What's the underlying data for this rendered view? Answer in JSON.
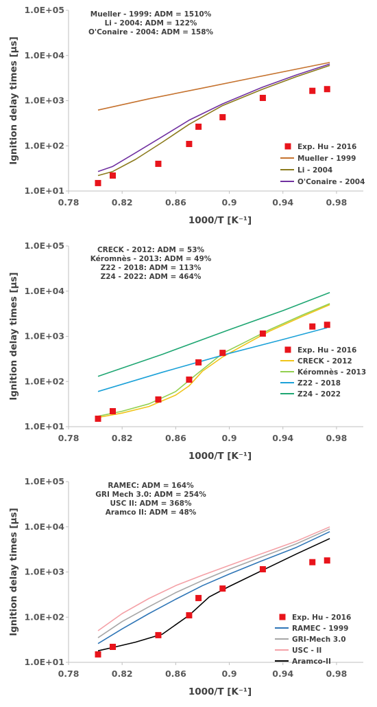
{
  "chart_data": [
    {
      "type": "scatter",
      "xlabel": "1000/T [K⁻¹]",
      "ylabel": "Ignition delay times [μs]",
      "x_ticks": [
        "0.78",
        "0.82",
        "0.86",
        "0.9",
        "0.94",
        "0.98"
      ],
      "y_ticks": [
        "1.0E+01",
        "1.0E+02",
        "1.0E+03",
        "1.0E+04",
        "1.0E+05"
      ],
      "xlim": [
        0.78,
        1.0
      ],
      "ylim": [
        10,
        100000
      ],
      "y_scale": "log",
      "grid": false,
      "legend_position": "bottom-right",
      "annotations": [
        "Mueller - 1999: ADM = 1510%",
        "Li - 2004: ADM = 122%",
        "O'Conaire - 2004: ADM = 158%"
      ],
      "experimental": {
        "name": "Exp. Hu - 2016",
        "color": "#e8141b",
        "x": [
          0.802,
          0.813,
          0.847,
          0.87,
          0.877,
          0.895,
          0.925,
          0.962,
          0.973
        ],
        "y": [
          15,
          22,
          40,
          110,
          265,
          430,
          1150,
          1650,
          1800
        ]
      },
      "series": [
        {
          "name": "Mueller - 1999",
          "color": "#c5722e",
          "x": [
            0.802,
            0.84,
            0.88,
            0.92,
            0.975
          ],
          "y": [
            620,
            1100,
            1900,
            3300,
            7000
          ]
        },
        {
          "name": "Li - 2004",
          "color": "#8b7a1c",
          "x": [
            0.802,
            0.813,
            0.83,
            0.85,
            0.87,
            0.895,
            0.925,
            0.95,
            0.975
          ],
          "y": [
            22,
            27,
            50,
            120,
            300,
            780,
            1800,
            3400,
            6000
          ]
        },
        {
          "name": "O'Conaire - 2004",
          "color": "#7030a0",
          "x": [
            0.802,
            0.813,
            0.83,
            0.85,
            0.87,
            0.895,
            0.925,
            0.95,
            0.975
          ],
          "y": [
            27,
            35,
            70,
            160,
            370,
            850,
            2000,
            3700,
            6500
          ]
        }
      ]
    },
    {
      "type": "scatter",
      "xlabel": "1000/T [K⁻¹]",
      "ylabel": "Ignition delay times [μs]",
      "x_ticks": [
        "0.78",
        "0.82",
        "0.86",
        "0.9",
        "0.94",
        "0.98"
      ],
      "y_ticks": [
        "1.0E+01",
        "1.0E+02",
        "1.0E+03",
        "1.0E+04",
        "1.0E+05"
      ],
      "xlim": [
        0.78,
        1.0
      ],
      "ylim": [
        10,
        100000
      ],
      "y_scale": "log",
      "grid": false,
      "legend_position": "bottom-right",
      "annotations": [
        "CRECK - 2012: ADM = 53%",
        "Kéromnès - 2013: ADM = 49%",
        "Z22 - 2018: ADM = 113%",
        "Z24 - 2022: ADM = 464%"
      ],
      "experimental": {
        "name": "Exp. Hu - 2016",
        "color": "#e8141b",
        "x": [
          0.802,
          0.813,
          0.847,
          0.87,
          0.877,
          0.895,
          0.925,
          0.962,
          0.973
        ],
        "y": [
          15,
          22,
          40,
          110,
          265,
          430,
          1150,
          1650,
          1800
        ]
      },
      "series": [
        {
          "name": "CRECK - 2012",
          "color": "#f0c419",
          "x": [
            0.802,
            0.82,
            0.84,
            0.86,
            0.87,
            0.88,
            0.895,
            0.91,
            0.93,
            0.955,
            0.975
          ],
          "y": [
            16,
            20,
            28,
            50,
            80,
            170,
            350,
            620,
            1300,
            2800,
            5000
          ]
        },
        {
          "name": "Kéromnès - 2013",
          "color": "#92d050",
          "x": [
            0.802,
            0.82,
            0.84,
            0.86,
            0.875,
            0.895,
            0.91,
            0.93,
            0.955,
            0.975
          ],
          "y": [
            17,
            22,
            32,
            60,
            140,
            420,
            700,
            1400,
            3000,
            5300
          ]
        },
        {
          "name": "Z22 - 2018",
          "color": "#1ba1d8",
          "x": [
            0.802,
            0.85,
            0.9,
            0.94,
            0.973
          ],
          "y": [
            60,
            160,
            420,
            850,
            1550
          ]
        },
        {
          "name": "Z24 - 2022",
          "color": "#1ea672",
          "x": [
            0.802,
            0.85,
            0.9,
            0.94,
            0.975
          ],
          "y": [
            130,
            400,
            1400,
            3700,
            9300
          ]
        }
      ]
    },
    {
      "type": "scatter",
      "xlabel": "1000/T [K⁻¹]",
      "ylabel": "Ignition delay times [μs]",
      "x_ticks": [
        "0.78",
        "0.82",
        "0.86",
        "0.9",
        "0.94",
        "0.98"
      ],
      "y_ticks": [
        "1.0E+01",
        "1.0E+02",
        "1.0E+03",
        "1.0E+04",
        "1.0E+05"
      ],
      "xlim": [
        0.78,
        1.0
      ],
      "ylim": [
        10,
        100000
      ],
      "y_scale": "log",
      "grid": false,
      "legend_position": "bottom-right",
      "annotations": [
        "RAMEC: ADM = 164%",
        "GRI Mech 3.0: ADM = 254%",
        "USC II: ADM = 368%",
        "Aramco II: ADM = 48%"
      ],
      "experimental": {
        "name": "Exp. Hu - 2016",
        "color": "#e8141b",
        "x": [
          0.802,
          0.813,
          0.847,
          0.87,
          0.877,
          0.895,
          0.925,
          0.962,
          0.973
        ],
        "y": [
          15,
          22,
          40,
          110,
          265,
          430,
          1150,
          1650,
          1800
        ]
      },
      "series": [
        {
          "name": "RAMEC - 1999",
          "color": "#2e75b6",
          "x": [
            0.802,
            0.82,
            0.84,
            0.86,
            0.88,
            0.9,
            0.925,
            0.95,
            0.975
          ],
          "y": [
            26,
            55,
            120,
            250,
            500,
            900,
            1800,
            3500,
            7800
          ]
        },
        {
          "name": "GRI-Mech 3.0",
          "color": "#a6a6a6",
          "x": [
            0.802,
            0.82,
            0.84,
            0.86,
            0.88,
            0.9,
            0.925,
            0.95,
            0.975
          ],
          "y": [
            35,
            80,
            170,
            350,
            650,
            1150,
            2200,
            4200,
            9000
          ]
        },
        {
          "name": "USC - II",
          "color": "#f4a0a6",
          "x": [
            0.802,
            0.82,
            0.84,
            0.86,
            0.88,
            0.9,
            0.925,
            0.95,
            0.975
          ],
          "y": [
            50,
            120,
            260,
            500,
            850,
            1400,
            2600,
            4800,
            10000
          ]
        },
        {
          "name": "Aramco-II",
          "color": "#000000",
          "x": [
            0.802,
            0.815,
            0.83,
            0.85,
            0.87,
            0.885,
            0.9,
            0.925,
            0.95,
            0.975
          ],
          "y": [
            18,
            22,
            28,
            42,
            110,
            280,
            480,
            1100,
            2500,
            5500
          ]
        }
      ]
    }
  ]
}
